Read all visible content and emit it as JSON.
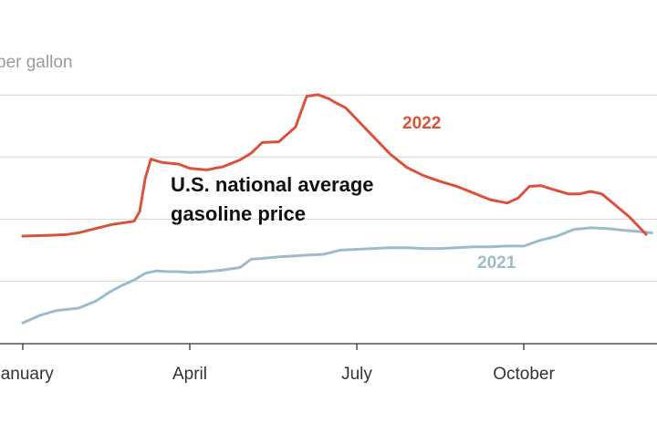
{
  "chart_data": {
    "type": "line",
    "ylabel": "per gallon",
    "annotation_line1": "U.S. national average",
    "annotation_line2": "gasoline price",
    "x_ticks": [
      "January",
      "April",
      "July",
      "October"
    ],
    "ylim": [
      2.0,
      5.25
    ],
    "y_gridlines": [
      2.75,
      3.5,
      4.25,
      5.0
    ],
    "grid": true,
    "series": [
      {
        "name": "2022",
        "color": "#d9533a",
        "x": [
          0,
          0.5,
          0.8,
          1.0,
          1.3,
          1.6,
          2.0,
          2.1,
          2.2,
          2.3,
          2.5,
          2.8,
          3.0,
          3.3,
          3.6,
          3.9,
          4.1,
          4.3,
          4.6,
          4.9,
          5.1,
          5.3,
          5.5,
          5.6,
          5.8,
          6.0,
          6.3,
          6.6,
          6.9,
          7.2,
          7.5,
          7.8,
          8.1,
          8.4,
          8.7,
          8.9,
          9.1,
          9.3,
          9.5,
          9.8,
          10.0,
          10.2,
          10.4,
          10.6,
          10.9,
          11.2
        ],
        "values": [
          3.3,
          3.31,
          3.32,
          3.34,
          3.39,
          3.44,
          3.48,
          3.6,
          4.0,
          4.23,
          4.19,
          4.17,
          4.12,
          4.1,
          4.14,
          4.22,
          4.3,
          4.43,
          4.44,
          4.62,
          4.99,
          5.01,
          4.96,
          4.92,
          4.85,
          4.71,
          4.5,
          4.29,
          4.13,
          4.03,
          3.96,
          3.9,
          3.82,
          3.74,
          3.7,
          3.76,
          3.9,
          3.91,
          3.87,
          3.81,
          3.81,
          3.84,
          3.81,
          3.7,
          3.53,
          3.32
        ]
      },
      {
        "name": "2021",
        "color": "#9bbccc",
        "x": [
          0,
          0.3,
          0.6,
          1.0,
          1.3,
          1.6,
          1.8,
          2.0,
          2.2,
          2.4,
          2.6,
          2.8,
          3.0,
          3.3,
          3.6,
          3.9,
          4.1,
          4.3,
          4.6,
          4.9,
          5.1,
          5.4,
          5.7,
          6.0,
          6.3,
          6.6,
          6.9,
          7.2,
          7.5,
          7.8,
          8.1,
          8.4,
          8.7,
          9.0,
          9.3,
          9.6,
          9.9,
          10.2,
          10.5,
          10.8,
          11.0,
          11.3
        ],
        "values": [
          2.25,
          2.34,
          2.4,
          2.43,
          2.51,
          2.64,
          2.71,
          2.77,
          2.85,
          2.88,
          2.87,
          2.87,
          2.86,
          2.87,
          2.89,
          2.92,
          3.02,
          3.03,
          3.05,
          3.06,
          3.07,
          3.08,
          3.13,
          3.14,
          3.15,
          3.16,
          3.16,
          3.15,
          3.15,
          3.16,
          3.17,
          3.17,
          3.18,
          3.18,
          3.25,
          3.3,
          3.38,
          3.4,
          3.39,
          3.37,
          3.36,
          3.34
        ]
      }
    ]
  }
}
